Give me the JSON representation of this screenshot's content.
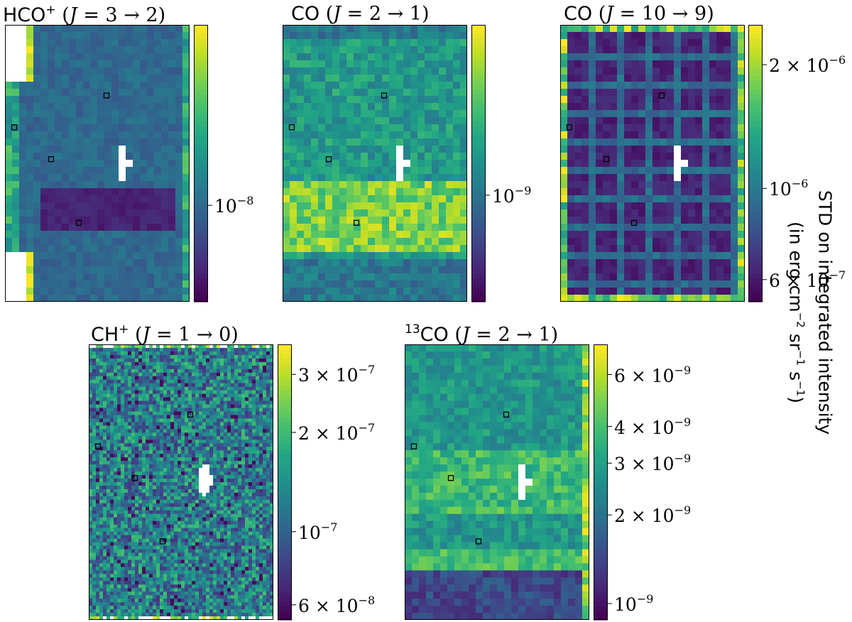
{
  "figure": {
    "colormap": "viridis",
    "ylabel_line1": "STD on integrated intensity",
    "ylabel_line2_parts": [
      "(in erg cm",
      "−2",
      " sr",
      "−1",
      " s",
      "−1",
      ")"
    ]
  },
  "chart_data": [
    {
      "type": "heatmap",
      "molecule": "HCO",
      "molecule_sup": "+",
      "molecule_pre": "",
      "transition": "(J = 3 → 2)",
      "trans_J": "J",
      "trans_rest": " = 3 → 2)",
      "title": "HCO+ (J = 3 → 2)",
      "colorbar_scale": "log",
      "colorbar_range": [
        5.2e-09,
        3.4e-08
      ],
      "colorbar_ticks": [
        {
          "mant": "",
          "base": "10",
          "exp": "−8",
          "value": 1e-08
        }
      ],
      "pattern": "dark-band",
      "masked_hole": true,
      "markers": 4
    },
    {
      "type": "heatmap",
      "molecule": "CO",
      "molecule_sup": "",
      "molecule_pre": "",
      "title": "CO (J = 2 → 1)",
      "trans_J": "J",
      "trans_rest": " = 2 → 1)",
      "colorbar_scale": "log",
      "colorbar_range": [
        5.5e-10,
        2.6e-09
      ],
      "colorbar_ticks": [
        {
          "mant": "",
          "base": "10",
          "exp": "−9",
          "value": 1e-09
        }
      ],
      "pattern": "bright-band",
      "masked_hole": true,
      "markers": 4
    },
    {
      "type": "heatmap",
      "molecule": "CO",
      "molecule_sup": "",
      "molecule_pre": "",
      "title": "CO (J = 10 → 9)",
      "trans_J": "J",
      "trans_rest": " = 10 → 9)",
      "colorbar_scale": "log",
      "colorbar_range": [
        5.3e-07,
        2.5e-06
      ],
      "colorbar_ticks": [
        {
          "mant": "2 × ",
          "base": "10",
          "exp": "−6",
          "value": 2e-06
        },
        {
          "mant": "",
          "base": "10",
          "exp": "−6",
          "value": 1e-06
        },
        {
          "mant": "6 × ",
          "base": "10",
          "exp": "−7",
          "value": 6e-07
        }
      ],
      "pattern": "grid-stripes",
      "masked_hole": true,
      "markers": 4
    },
    {
      "type": "heatmap",
      "molecule": "CH",
      "molecule_sup": "+",
      "molecule_pre": "",
      "title": "CH+ (J = 1 → 0)",
      "trans_J": "J",
      "trans_rest": " = 1 → 0)",
      "colorbar_scale": "log",
      "colorbar_range": [
        5.4e-08,
        3.7e-07
      ],
      "colorbar_ticks": [
        {
          "mant": "3 × ",
          "base": "10",
          "exp": "−7",
          "value": 3e-07
        },
        {
          "mant": "2 × ",
          "base": "10",
          "exp": "−7",
          "value": 2e-07
        },
        {
          "mant": "",
          "base": "10",
          "exp": "−7",
          "value": 1e-07
        },
        {
          "mant": "6 × ",
          "base": "10",
          "exp": "−8",
          "value": 6e-08
        }
      ],
      "pattern": "noise",
      "masked_hole": true,
      "markers": 4
    },
    {
      "type": "heatmap",
      "molecule": "CO",
      "molecule_sup": "",
      "molecule_pre": "13",
      "title": "13CO (J = 2 → 1)",
      "trans_J": "J",
      "trans_rest": " = 2 → 1)",
      "colorbar_scale": "log",
      "colorbar_range": [
        8.8e-10,
        7.6e-09
      ],
      "colorbar_ticks": [
        {
          "mant": "6 × ",
          "base": "10",
          "exp": "−9",
          "value": 6e-09
        },
        {
          "mant": "4 × ",
          "base": "10",
          "exp": "−9",
          "value": 4e-09
        },
        {
          "mant": "3 × ",
          "base": "10",
          "exp": "−9",
          "value": 3e-09
        },
        {
          "mant": "2 × ",
          "base": "10",
          "exp": "−9",
          "value": 2e-09
        },
        {
          "mant": "",
          "base": "10",
          "exp": "−9",
          "value": 1e-09
        }
      ],
      "pattern": "bands",
      "masked_hole": true,
      "markers": 4
    }
  ]
}
